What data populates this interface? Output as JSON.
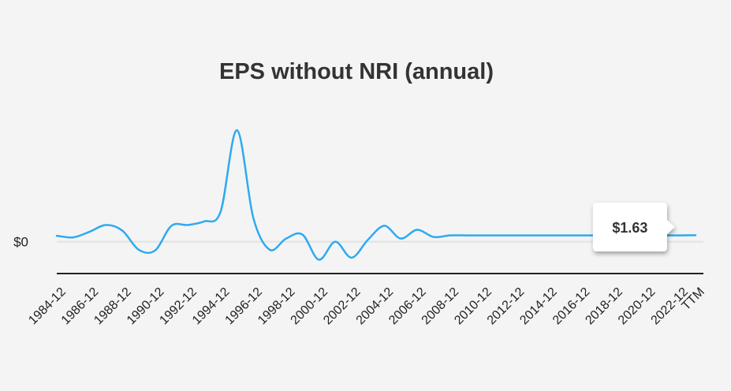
{
  "chart_data": {
    "type": "line",
    "title": "EPS without NRI (annual)",
    "xlabel": "",
    "ylabel": "",
    "categories": [
      "1984-12",
      "1985-12",
      "1986-12",
      "1987-12",
      "1988-12",
      "1989-12",
      "1990-12",
      "1991-12",
      "1992-12",
      "1993-12",
      "1994-12",
      "1995-12",
      "1996-12",
      "1997-12",
      "1998-12",
      "1999-12",
      "2000-12",
      "2001-12",
      "2002-12",
      "2003-12",
      "2004-12",
      "2005-12",
      "2006-12",
      "2007-12",
      "2008-12",
      "2009-12",
      "2010-12",
      "2011-12",
      "2012-12",
      "2013-12",
      "2014-12",
      "2015-12",
      "2016-12",
      "2017-12",
      "2018-12",
      "2019-12",
      "2020-12",
      "2021-12",
      "2022-12",
      "TTM"
    ],
    "tick_labels": [
      "1984-12",
      "1986-12",
      "1988-12",
      "1990-12",
      "1992-12",
      "1994-12",
      "1996-12",
      "1998-12",
      "2000-12",
      "2002-12",
      "2004-12",
      "2006-12",
      "2008-12",
      "2010-12",
      "2012-12",
      "2014-12",
      "2016-12",
      "2018-12",
      "2020-12",
      "2022-12",
      "TTM"
    ],
    "series": [
      {
        "values": [
          1.5,
          1.1,
          2.5,
          4.2,
          2.8,
          -2.0,
          -2.2,
          4.0,
          4.2,
          5.1,
          7.5,
          28.0,
          6.0,
          -2.0,
          0.8,
          1.8,
          -4.5,
          0.0,
          -4.0,
          0.5,
          4.0,
          0.8,
          3.0,
          1.2,
          1.6,
          1.6,
          1.6,
          1.6,
          1.6,
          1.6,
          1.6,
          1.6,
          1.6,
          1.6,
          1.6,
          1.6,
          1.6,
          1.6,
          1.6,
          1.63
        ],
        "color": "#2eaaf0"
      }
    ],
    "y_tick_labels": [
      {
        "value": 0,
        "label": "$0"
      }
    ],
    "ylim": [
      -6,
      30
    ],
    "grid": false,
    "tooltip": {
      "category": "2019-12",
      "text": "$1.63"
    }
  }
}
